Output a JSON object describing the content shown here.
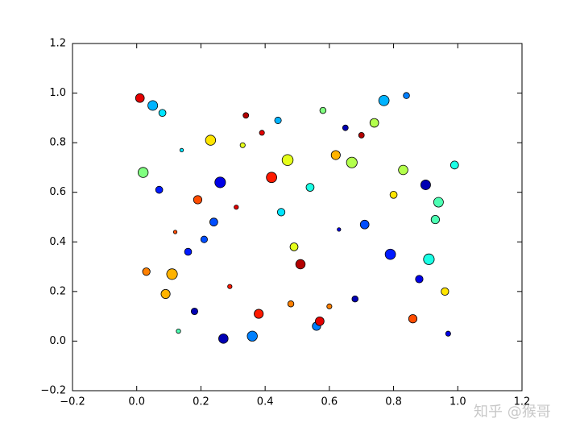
{
  "chart_data": {
    "type": "scatter",
    "x": [
      0.01,
      0.97,
      0.45,
      0.23,
      0.68,
      0.12,
      0.83,
      0.56,
      0.34,
      0.91,
      0.07,
      0.62,
      0.29,
      0.77,
      0.49,
      0.18,
      0.94,
      0.39,
      0.71,
      0.03,
      0.58,
      0.26,
      0.86,
      0.14,
      0.51,
      0.8,
      0.36,
      0.65,
      0.09,
      0.99,
      0.42,
      0.21,
      0.74,
      0.31,
      0.88,
      0.05,
      0.6,
      0.47,
      0.16,
      0.93,
      0.27,
      0.7,
      0.54,
      0.11,
      0.84,
      0.38,
      0.63,
      0.02,
      0.96,
      0.44,
      0.19,
      0.79,
      0.33,
      0.57,
      0.08,
      0.9,
      0.48,
      0.24,
      0.67,
      0.13
    ],
    "y": [
      0.98,
      0.03,
      0.52,
      0.81,
      0.17,
      0.44,
      0.69,
      0.06,
      0.91,
      0.33,
      0.61,
      0.75,
      0.22,
      0.97,
      0.38,
      0.12,
      0.56,
      0.84,
      0.47,
      0.28,
      0.93,
      0.64,
      0.09,
      0.77,
      0.31,
      0.59,
      0.02,
      0.86,
      0.19,
      0.71,
      0.66,
      0.41,
      0.88,
      0.54,
      0.25,
      0.95,
      0.14,
      0.73,
      0.36,
      0.49,
      0.01,
      0.83,
      0.62,
      0.27,
      0.99,
      0.11,
      0.45,
      0.68,
      0.2,
      0.89,
      0.57,
      0.35,
      0.79,
      0.08,
      0.92,
      0.63,
      0.15,
      0.48,
      0.72,
      0.04
    ],
    "sizes": [
      60,
      20,
      45,
      80,
      30,
      10,
      70,
      55,
      25,
      90,
      40,
      65,
      15,
      85,
      50,
      35,
      75,
      20,
      60,
      45,
      30,
      90,
      55,
      10,
      70,
      40,
      80,
      25,
      65,
      50,
      85,
      35,
      60,
      15,
      45,
      75,
      20,
      95,
      40,
      55,
      70,
      25,
      50,
      90,
      30,
      65,
      10,
      80,
      45,
      35,
      55,
      85,
      20,
      60,
      40,
      75,
      30,
      50,
      90,
      15
    ],
    "c": [
      0.9,
      0.1,
      0.35,
      0.65,
      0.05,
      0.8,
      0.55,
      0.25,
      0.95,
      0.4,
      0.15,
      0.7,
      0.85,
      0.3,
      0.6,
      0.05,
      0.45,
      0.9,
      0.2,
      0.75,
      0.5,
      0.1,
      0.8,
      0.35,
      0.95,
      0.65,
      0.25,
      0.05,
      0.7,
      0.4,
      0.85,
      0.2,
      0.55,
      0.9,
      0.1,
      0.3,
      0.75,
      0.6,
      0.15,
      0.45,
      0.05,
      0.95,
      0.4,
      0.7,
      0.25,
      0.85,
      0.1,
      0.5,
      0.65,
      0.3,
      0.8,
      0.15,
      0.6,
      0.9,
      0.35,
      0.05,
      0.75,
      0.2,
      0.55,
      0.45
    ],
    "colormap": "jet",
    "xlim": [
      -0.2,
      1.2
    ],
    "ylim": [
      -0.2,
      1.2
    ],
    "xticks": [
      {
        "value": -0.2,
        "label": "−0.2"
      },
      {
        "value": 0,
        "label": "0.0"
      },
      0.2,
      0.4,
      0.6,
      0.8,
      {
        "value": 1,
        "label": "1.0"
      },
      1.2
    ],
    "yticks": [
      {
        "value": -0.2,
        "label": "−0.2"
      },
      {
        "value": 0,
        "label": "0.0"
      },
      0.2,
      0.4,
      0.6,
      0.8,
      {
        "value": 1,
        "label": "1.0"
      },
      1.2
    ],
    "watermark": "知乎 @猴哥"
  }
}
